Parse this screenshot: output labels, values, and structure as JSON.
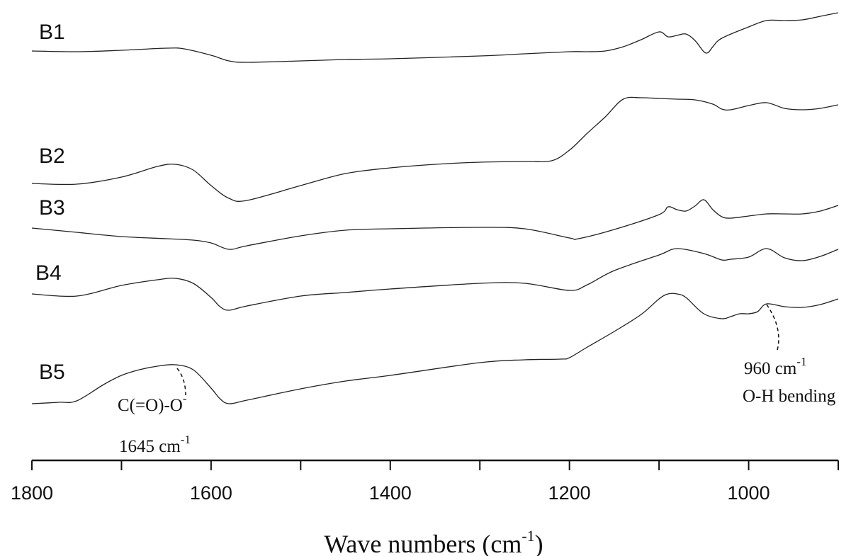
{
  "chart_data": {
    "type": "line",
    "xlabel": "Wave numbers (cm",
    "xlabel_sup": "-1",
    "xlabel_close": ")",
    "xlim": [
      1800,
      900
    ],
    "x_reversed": true,
    "x_ticks": [
      1800,
      1700,
      1600,
      1500,
      1400,
      1300,
      1200,
      1100,
      1000,
      900
    ],
    "x_tick_labels": [
      {
        "value": 1800,
        "label": "1800"
      },
      {
        "value": 1600,
        "label": "1600"
      },
      {
        "value": 1400,
        "label": "1400"
      },
      {
        "value": 1200,
        "label": "1200"
      },
      {
        "value": 1000,
        "label": "1000"
      }
    ],
    "series": [
      {
        "name": "B1",
        "x": [
          1800,
          1750,
          1700,
          1650,
          1630,
          1600,
          1580,
          1560,
          1500,
          1450,
          1400,
          1300,
          1250,
          1200,
          1180,
          1160,
          1140,
          1120,
          1100,
          1090,
          1080,
          1070,
          1060,
          1050,
          1045,
          1040,
          1030,
          1000,
          980,
          960,
          940,
          920,
          900
        ],
        "y": [
          72,
          73,
          71,
          68,
          69,
          78,
          86,
          88,
          86,
          84,
          83,
          79,
          76,
          73,
          73,
          72,
          66,
          56,
          45,
          52,
          50,
          48,
          57,
          73,
          74,
          66,
          54,
          38,
          29,
          29,
          28,
          23,
          18
        ]
      },
      {
        "name": "B2",
        "x": [
          1800,
          1750,
          1700,
          1660,
          1640,
          1620,
          1600,
          1580,
          1560,
          1500,
          1450,
          1400,
          1350,
          1300,
          1250,
          1220,
          1200,
          1180,
          1160,
          1140,
          1120,
          1100,
          1080,
          1060,
          1040,
          1030,
          1020,
          1000,
          980,
          960,
          940,
          920,
          900
        ],
        "y": [
          259,
          260,
          250,
          235,
          232,
          240,
          262,
          280,
          283,
          262,
          245,
          237,
          232,
          229,
          228,
          227,
          212,
          188,
          165,
          140,
          138,
          139,
          140,
          141,
          147,
          154,
          155,
          149,
          145,
          153,
          155,
          153,
          148
        ]
      },
      {
        "name": "B3",
        "x": [
          1800,
          1750,
          1700,
          1650,
          1620,
          1600,
          1580,
          1560,
          1500,
          1450,
          1400,
          1300,
          1250,
          1200,
          1190,
          1150,
          1100,
          1090,
          1080,
          1070,
          1060,
          1050,
          1040,
          1030,
          1020,
          1000,
          980,
          960,
          940,
          920,
          900
        ],
        "y": [
          322,
          328,
          334,
          337,
          339,
          343,
          352,
          347,
          333,
          325,
          323,
          321,
          323,
          336,
          337,
          324,
          303,
          292,
          296,
          298,
          291,
          282,
          296,
          306,
          308,
          305,
          302,
          302,
          302,
          298,
          290
        ]
      },
      {
        "name": "B4",
        "x": [
          1800,
          1750,
          1700,
          1660,
          1640,
          1620,
          1600,
          1590,
          1580,
          1560,
          1500,
          1450,
          1400,
          1300,
          1250,
          1200,
          1180,
          1150,
          1100,
          1080,
          1050,
          1030,
          1020,
          1000,
          980,
          960,
          940,
          920,
          900
        ],
        "y": [
          415,
          418,
          403,
          395,
          393,
          400,
          420,
          433,
          438,
          432,
          418,
          413,
          408,
          400,
          400,
          410,
          402,
          382,
          360,
          351,
          358,
          367,
          366,
          363,
          351,
          364,
          368,
          362,
          352
        ]
      },
      {
        "name": "B5",
        "x": [
          1800,
          1770,
          1750,
          1720,
          1700,
          1680,
          1660,
          1640,
          1620,
          1600,
          1590,
          1580,
          1560,
          1500,
          1450,
          1400,
          1300,
          1250,
          1210,
          1200,
          1180,
          1150,
          1120,
          1100,
          1090,
          1080,
          1070,
          1050,
          1030,
          1020,
          1010,
          1000,
          990,
          980,
          960,
          940,
          920,
          900
        ],
        "y": [
          570,
          568,
          566,
          543,
          530,
          522,
          517,
          515,
          522,
          548,
          563,
          570,
          565,
          549,
          538,
          530,
          512,
          508,
          507,
          505,
          490,
          468,
          444,
          422,
          415,
          415,
          420,
          443,
          450,
          447,
          443,
          443,
          440,
          429,
          433,
          434,
          430,
          422
        ]
      }
    ],
    "annotations": [
      {
        "text": "C(=O)-O",
        "sup": "-",
        "wavenumber": 1645,
        "wavenumber_label": "1645 cm",
        "wavenumber_sup": "-1"
      },
      {
        "text": "O-H bending",
        "wavenumber": 960,
        "wavenumber_label": "960 cm",
        "wavenumber_sup": "-1"
      }
    ]
  }
}
